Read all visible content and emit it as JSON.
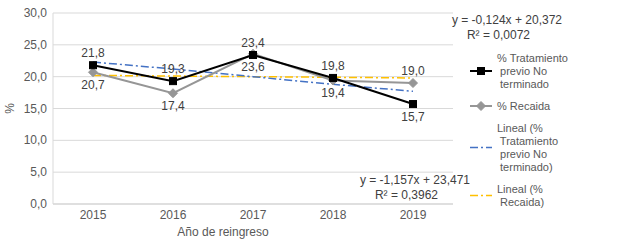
{
  "chart_data": {
    "type": "line",
    "x_label": "Año de reingreso",
    "y_label": "%",
    "categories": [
      "2015",
      "2016",
      "2017",
      "2018",
      "2019"
    ],
    "ylim": [
      0,
      30
    ],
    "yticks": [
      {
        "value": 0,
        "label": "0,0"
      },
      {
        "value": 5,
        "label": "5,0"
      },
      {
        "value": 10,
        "label": "10,0"
      },
      {
        "value": 15,
        "label": "15,0"
      },
      {
        "value": 20,
        "label": "20,0"
      },
      {
        "value": 25,
        "label": "25,0"
      },
      {
        "value": 30,
        "label": "30,0"
      }
    ],
    "grid": true,
    "legend": "right",
    "data_labels": true,
    "series": [
      {
        "name": "% Tratamiento previo No terminado",
        "color": "#000000",
        "marker": "square",
        "line_style": "solid",
        "values": [
          21.8,
          19.3,
          23.4,
          19.8,
          15.7
        ],
        "value_labels": [
          "21,8",
          "19,3",
          "23,4",
          "19,8",
          "15,7"
        ]
      },
      {
        "name": "% Recaida",
        "color": "#969696",
        "marker": "diamond",
        "line_style": "solid",
        "values": [
          20.7,
          17.4,
          23.6,
          19.4,
          19.0
        ],
        "value_labels": [
          "20,7",
          "17,4",
          "23,6",
          "19,4",
          "19,0"
        ]
      },
      {
        "name": "Lineal (% Tratamiento previo No terminado)",
        "color": "#4472c4",
        "marker": "none",
        "line_style": "dashdot",
        "values": [
          22.3,
          21.2,
          20.0,
          18.8,
          17.7
        ]
      },
      {
        "name": "Lineal (% Recaida)",
        "color": "#ffc000",
        "marker": "none",
        "line_style": "dashdot",
        "values": [
          20.2,
          20.1,
          20.0,
          19.9,
          19.8
        ]
      }
    ],
    "annotations": [
      {
        "text": "y = -0,124x + 20,372"
      },
      {
        "text": "R² = 0,0072"
      },
      {
        "text": "y = -1,157x + 23,471"
      },
      {
        "text": "R² = 0,3962"
      }
    ]
  }
}
